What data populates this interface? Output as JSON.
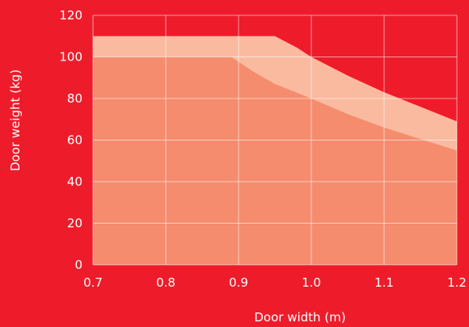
{
  "chart_data": {
    "type": "area",
    "title": "",
    "xlabel": "Door width (m)",
    "ylabel": "Door weight (kg)",
    "xlim": [
      0.7,
      1.2
    ],
    "ylim": [
      0,
      120
    ],
    "x_ticks": [
      "0.7",
      "0.8",
      "0.9",
      "1.0",
      "1.1",
      "1.2"
    ],
    "y_ticks": [
      "0",
      "20",
      "40",
      "60",
      "80",
      "100",
      "120"
    ],
    "grid": true,
    "legend": "none",
    "series": [
      {
        "points": [
          [
            0.7,
            110
          ],
          [
            0.95,
            110
          ],
          [
            0.98,
            104.5
          ],
          [
            1.0,
            100
          ],
          [
            1.05,
            91
          ],
          [
            1.1,
            83
          ],
          [
            1.15,
            76
          ],
          [
            1.2,
            69
          ]
        ],
        "color": "#fabaa0"
      },
      {
        "points": [
          [
            0.7,
            100
          ],
          [
            0.89,
            100
          ],
          [
            0.92,
            93
          ],
          [
            0.95,
            87
          ],
          [
            1.0,
            80
          ],
          [
            1.05,
            72.5
          ],
          [
            1.1,
            66
          ],
          [
            1.15,
            60.5
          ],
          [
            1.2,
            55
          ]
        ],
        "color": "#f58c6e"
      }
    ]
  }
}
